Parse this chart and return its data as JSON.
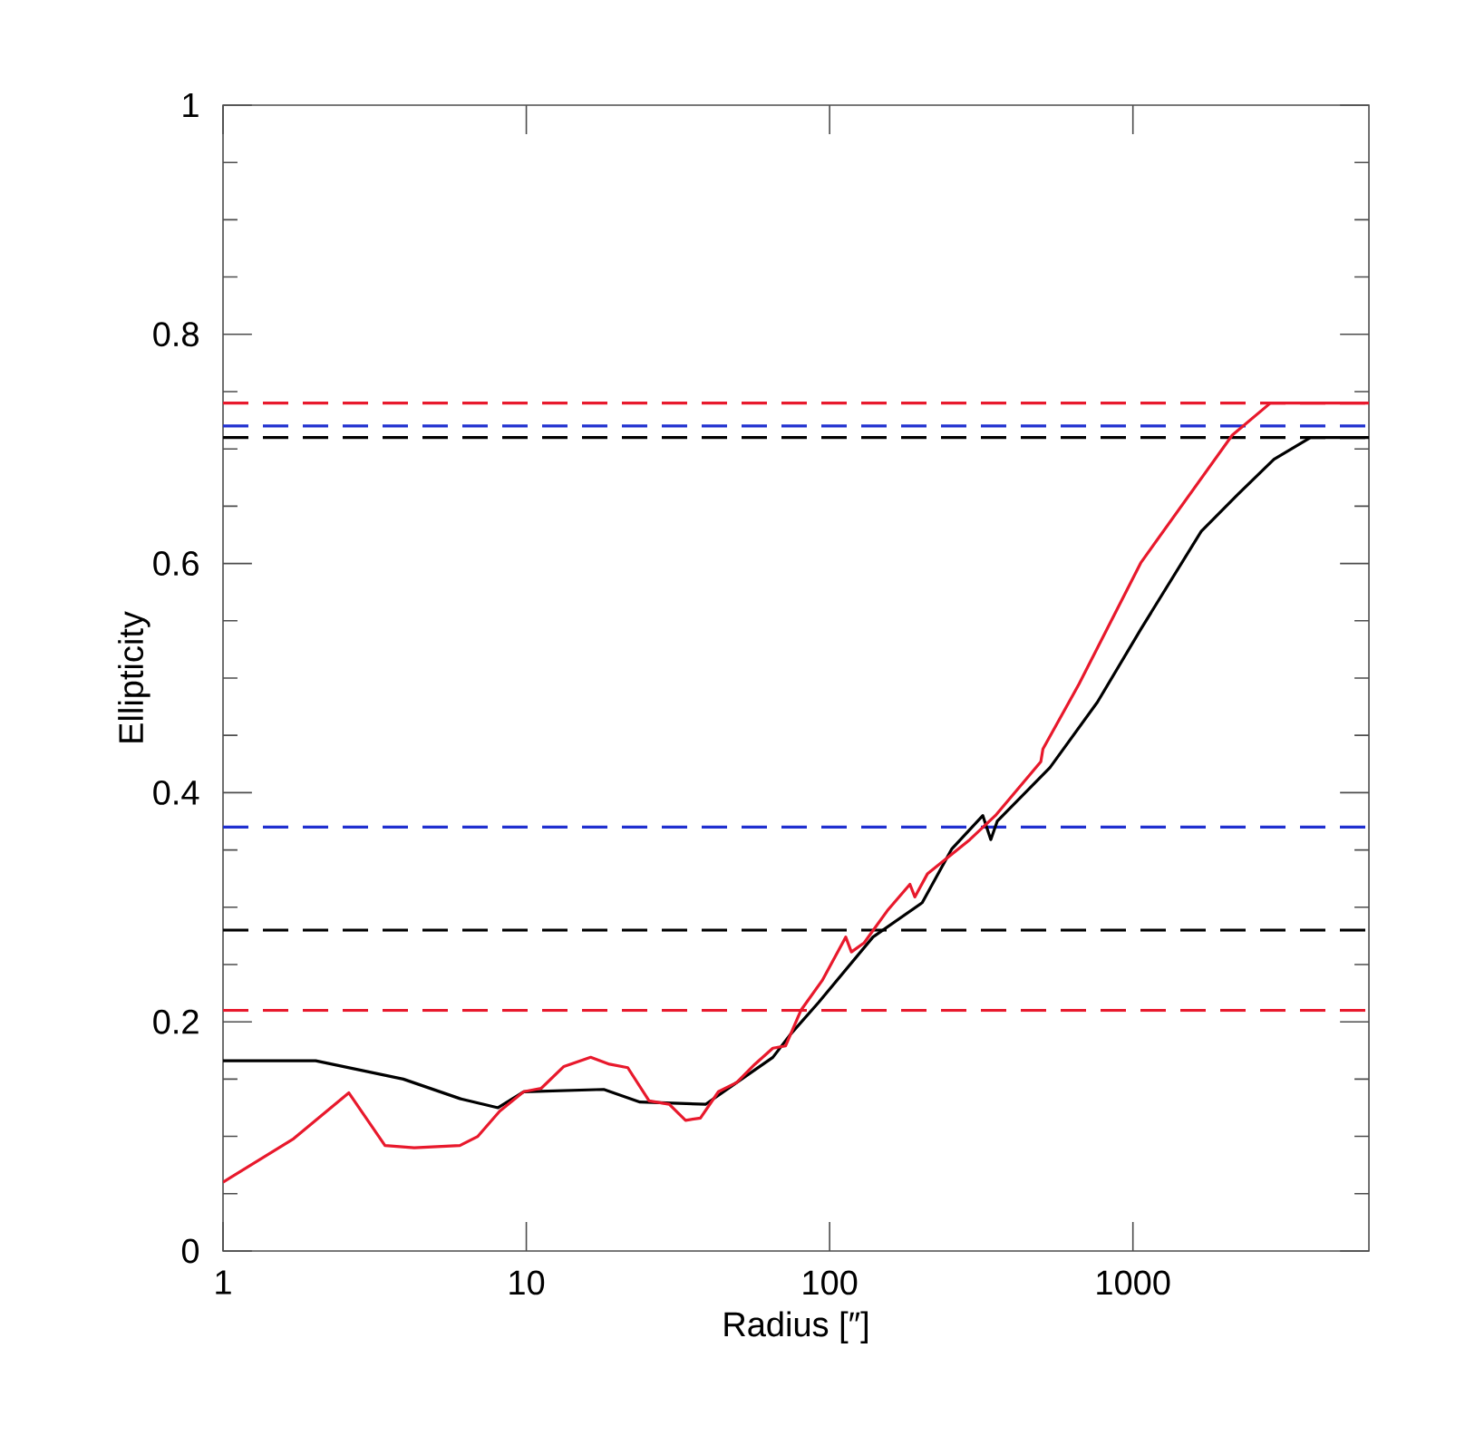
{
  "chart_data": {
    "type": "line",
    "xlabel": "Radius [″]",
    "ylabel": "Ellipticity",
    "log": "x",
    "xlim": [
      1,
      6000
    ],
    "ylim": [
      0,
      1
    ],
    "xticks": [
      1,
      10,
      100,
      1000
    ],
    "yticks": [
      0,
      0.2,
      0.4,
      0.6,
      0.8,
      1
    ],
    "series": [
      {
        "color": "#000000",
        "x": [
          1,
          2.02,
          3.93,
          6.04,
          8.07,
          9.8,
          18,
          23.7,
          39,
          49.4,
          65,
          74.8,
          92,
          139,
          202,
          253,
          320,
          340,
          357,
          533,
          764,
          1064,
          1680,
          2214,
          2919,
          3852,
          6000
        ],
        "values": [
          0.166,
          0.166,
          0.15,
          0.133,
          0.125,
          0.139,
          0.141,
          0.13,
          0.128,
          0.147,
          0.169,
          0.19,
          0.217,
          0.274,
          0.304,
          0.351,
          0.38,
          0.359,
          0.375,
          0.422,
          0.479,
          0.543,
          0.628,
          0.66,
          0.691,
          0.71,
          0.71
        ]
      },
      {
        "color": "#e8192c",
        "x": [
          1,
          1.71,
          2.6,
          3.42,
          4.27,
          6.04,
          6.92,
          8.17,
          9.8,
          11.2,
          13.3,
          16.3,
          18.8,
          21.6,
          25.4,
          29.6,
          33.5,
          37.5,
          43,
          49.4,
          56.7,
          65,
          71.6,
          80.4,
          94.5,
          113,
          118,
          130,
          155,
          184,
          191,
          210,
          290,
          352,
          497,
          505,
          665,
          1064,
          2126,
          2840,
          6000
        ],
        "values": [
          0.06,
          0.098,
          0.138,
          0.092,
          0.09,
          0.092,
          0.1,
          0.122,
          0.139,
          0.142,
          0.161,
          0.169,
          0.163,
          0.16,
          0.131,
          0.128,
          0.114,
          0.116,
          0.139,
          0.147,
          0.163,
          0.177,
          0.179,
          0.21,
          0.236,
          0.274,
          0.261,
          0.269,
          0.297,
          0.32,
          0.309,
          0.329,
          0.359,
          0.38,
          0.427,
          0.438,
          0.495,
          0.601,
          0.712,
          0.74,
          0.74
        ]
      }
    ],
    "ref_lines": [
      {
        "axis": "y",
        "value": 0.74,
        "color": "#e8192c",
        "line_style": "dashed"
      },
      {
        "axis": "y",
        "value": 0.72,
        "color": "#2030d0",
        "line_style": "dashed"
      },
      {
        "axis": "y",
        "value": 0.71,
        "color": "#000000",
        "line_style": "dashed"
      },
      {
        "axis": "y",
        "value": 0.37,
        "color": "#2030d0",
        "line_style": "dashed"
      },
      {
        "axis": "y",
        "value": 0.28,
        "color": "#000000",
        "line_style": "dashed"
      },
      {
        "axis": "y",
        "value": 0.21,
        "color": "#e8192c",
        "line_style": "dashed"
      }
    ]
  }
}
